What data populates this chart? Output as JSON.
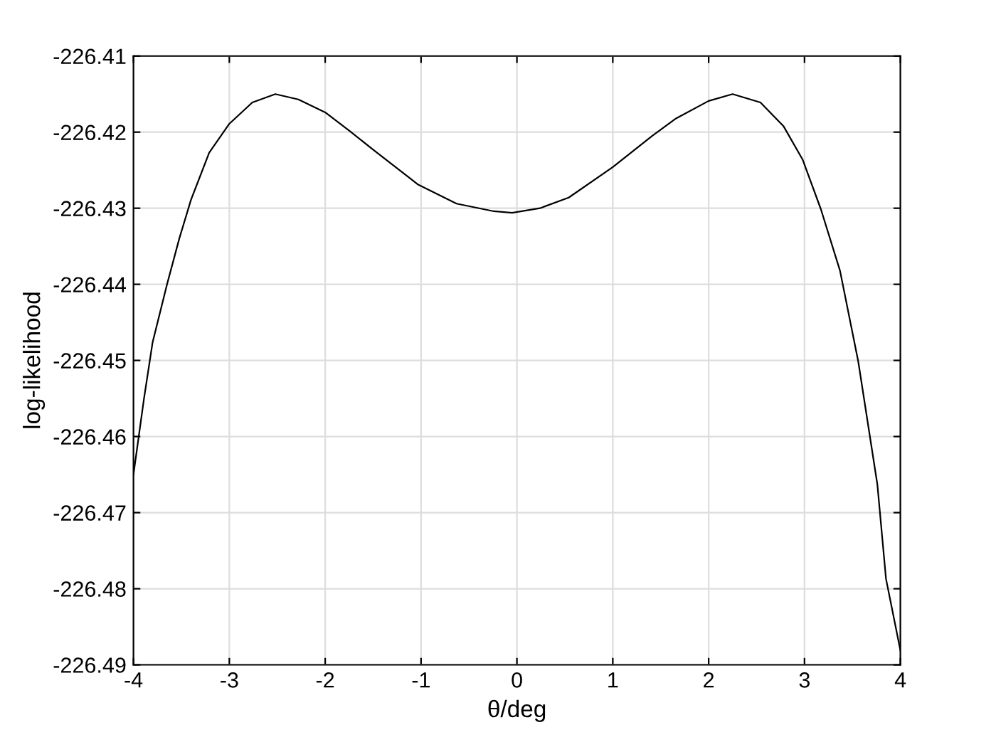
{
  "chart_data": {
    "type": "line",
    "xlabel": "θ/deg",
    "ylabel": "log-likelihood",
    "series": [
      {
        "color": "#000000",
        "x": [
          -4,
          -3.89,
          -3.8,
          -3.65,
          -3.52,
          -3.4,
          -3.21,
          -3.0,
          -2.76,
          -2.52,
          -2.28,
          -2.0,
          -1.74,
          -1.5,
          -1.03,
          -0.63,
          -0.24,
          -0.05,
          0.24,
          0.54,
          1.0,
          1.41,
          1.66,
          2.0,
          2.25,
          2.54,
          2.78,
          2.98,
          3.17,
          3.37,
          3.56,
          3.76,
          3.85,
          4.0
        ],
        "values": [
          -226.465,
          -226.455,
          -226.4476,
          -226.44,
          -226.4339,
          -226.4289,
          -226.4227,
          -226.4189,
          -226.4161,
          -226.415,
          -226.4157,
          -226.4174,
          -226.4199,
          -226.4223,
          -226.4269,
          -226.4294,
          -226.4304,
          -226.4306,
          -226.43,
          -226.4286,
          -226.4246,
          -226.4205,
          -226.4182,
          -226.4159,
          -226.415,
          -226.4161,
          -226.4192,
          -226.4236,
          -226.4301,
          -226.4382,
          -226.4501,
          -226.4663,
          -226.4787,
          -226.4881
        ]
      }
    ],
    "xlim": [
      -4,
      4
    ],
    "xticks": [
      -4,
      -3,
      -2,
      -1,
      0,
      1,
      2,
      3,
      4
    ],
    "ylim": [
      -226.49,
      -226.41
    ],
    "yticks": [
      -226.49,
      -226.48,
      -226.47,
      -226.46,
      -226.45,
      -226.44,
      -226.43,
      -226.42,
      -226.41
    ],
    "grid": true,
    "legend": false
  }
}
